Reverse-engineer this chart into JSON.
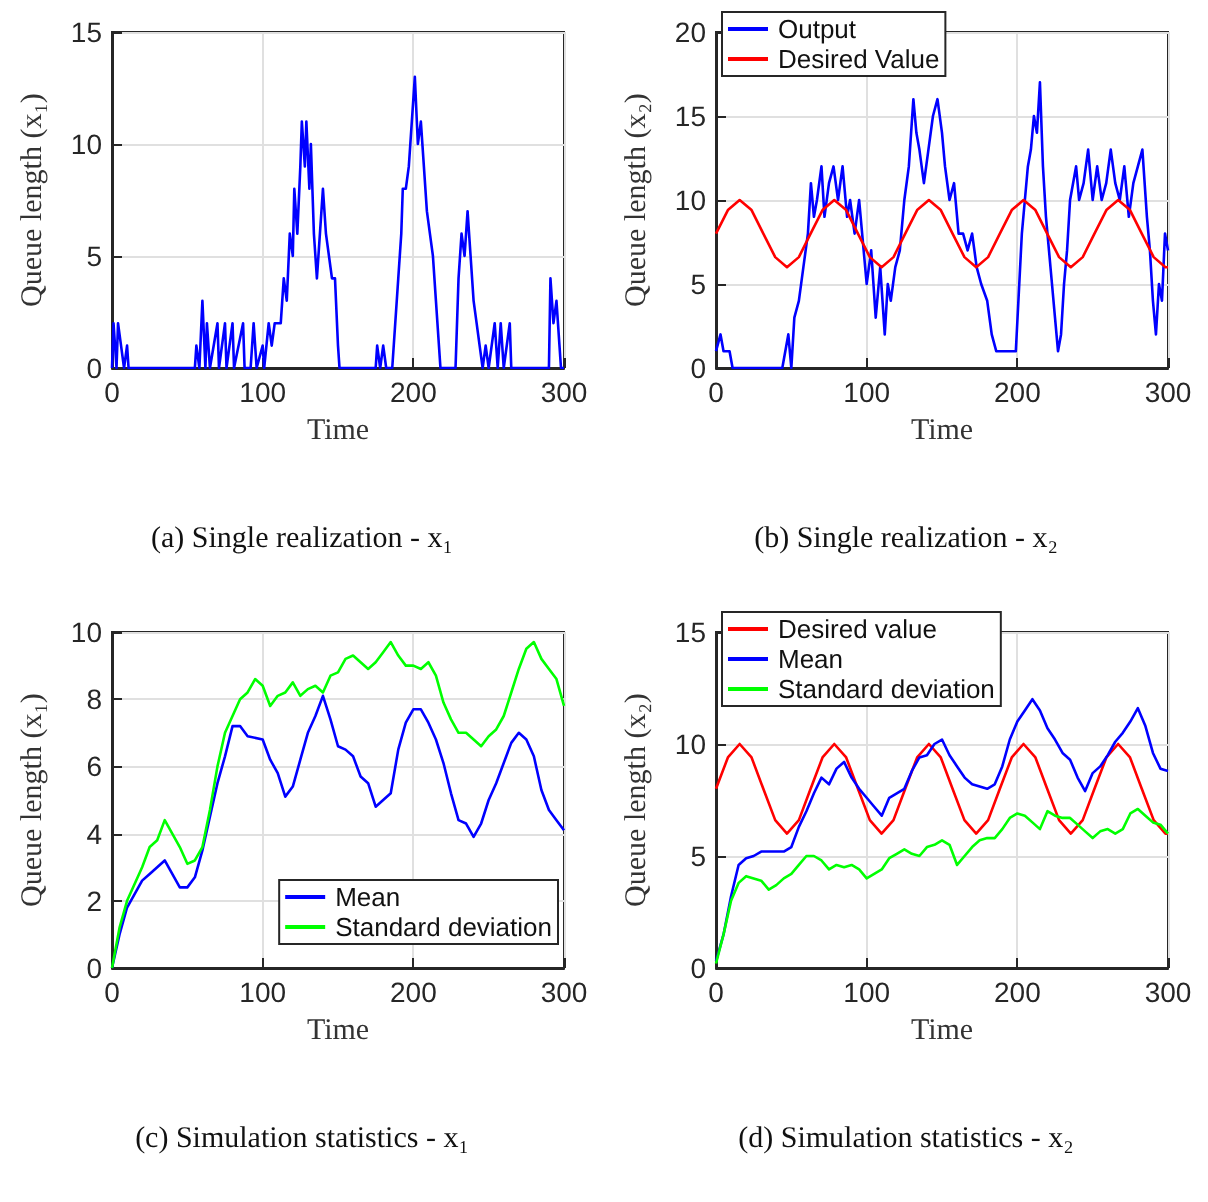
{
  "chart_data": [
    {
      "type": "line",
      "xlabel": "Time",
      "ylabel": "Queue length (x₁)",
      "annotations": [
        "(a) Single realization - x₁"
      ],
      "xlim": [
        0,
        300
      ],
      "xticks": [
        0,
        100,
        200,
        300
      ],
      "ylim": [
        0,
        15
      ],
      "yticks": [
        0,
        5,
        10,
        15
      ],
      "grid": true,
      "legend": false,
      "series": [
        {
          "color": "#0000ff",
          "x": [
            0,
            1,
            3,
            4,
            6,
            8,
            10,
            11,
            55,
            56,
            58,
            60,
            62,
            63,
            65,
            70,
            71,
            75,
            76,
            80,
            81,
            87,
            88,
            92,
            94,
            96,
            100,
            101,
            104,
            106,
            108,
            112,
            114,
            116,
            118,
            120,
            121,
            123,
            125,
            126,
            128,
            129,
            131,
            132,
            134,
            136,
            138,
            140,
            142,
            144,
            146,
            148,
            150,
            151,
            175,
            176,
            178,
            180,
            182,
            186,
            188,
            190,
            192,
            193,
            195,
            197,
            199,
            201,
            203,
            205,
            207,
            209,
            211,
            213,
            215,
            217,
            218,
            228,
            230,
            232,
            234,
            236,
            238,
            240,
            242,
            244,
            246,
            248,
            250,
            254,
            256,
            258,
            260,
            264,
            265,
            290,
            291,
            293,
            295,
            297,
            298,
            300
          ],
          "values": [
            0,
            2,
            0,
            2,
            1,
            0,
            1,
            0,
            0,
            1,
            0,
            3,
            0,
            2,
            0,
            2,
            0,
            2,
            0,
            2,
            0,
            2,
            0,
            0,
            2,
            0,
            1,
            0,
            2,
            1,
            2,
            2,
            4,
            3,
            6,
            5,
            8,
            6,
            9,
            11,
            9,
            11,
            8,
            10,
            6,
            4,
            6,
            8,
            6,
            5,
            4,
            4,
            1,
            0,
            0,
            1,
            0,
            1,
            0,
            0,
            2,
            4,
            6,
            8,
            8,
            9,
            11,
            13,
            10,
            11,
            9,
            7,
            6,
            5,
            3,
            1,
            0,
            0,
            4,
            6,
            5,
            7,
            5,
            3,
            2,
            1,
            0,
            1,
            0,
            2,
            0,
            2,
            0,
            2,
            0,
            0,
            4,
            2,
            3,
            1,
            0,
            0
          ]
        }
      ]
    },
    {
      "type": "line",
      "xlabel": "Time",
      "ylabel": "Queue length (x₂)",
      "annotations": [
        "(b) Single realization - x₂"
      ],
      "xlim": [
        0,
        300
      ],
      "xticks": [
        0,
        100,
        200,
        300
      ],
      "ylim": [
        0,
        20
      ],
      "yticks": [
        0,
        5,
        10,
        15,
        20
      ],
      "grid": true,
      "legend": "top left",
      "series": [
        {
          "name": "Output",
          "color": "#0000ff",
          "x": [
            0,
            3,
            5,
            9,
            11,
            13,
            44,
            46,
            48,
            50,
            52,
            55,
            58,
            61,
            63,
            65,
            67,
            70,
            72,
            75,
            78,
            81,
            84,
            87,
            89,
            92,
            95,
            98,
            100,
            103,
            106,
            109,
            112,
            114,
            116,
            119,
            122,
            125,
            128,
            131,
            133,
            135,
            138,
            141,
            144,
            147,
            150,
            152,
            155,
            158,
            161,
            164,
            167,
            170,
            173,
            176,
            180,
            183,
            186,
            188,
            191,
            195,
            199,
            203,
            205,
            207,
            209,
            211,
            213,
            215,
            217,
            219,
            221,
            223,
            225,
            227,
            229,
            231,
            233,
            235,
            237,
            239,
            241,
            244,
            247,
            250,
            253,
            256,
            259,
            262,
            265,
            268,
            271,
            274,
            277,
            280,
            283,
            286,
            288,
            290,
            292,
            294,
            296,
            298,
            300
          ],
          "values": [
            1,
            2,
            1,
            1,
            0,
            0,
            0,
            1,
            2,
            0,
            3,
            4,
            6,
            8,
            11,
            9,
            10,
            12,
            9,
            11,
            12,
            10,
            12,
            9,
            10,
            8,
            10,
            7,
            5,
            7,
            3,
            6,
            2,
            5,
            4,
            6,
            7,
            10,
            12,
            16,
            14,
            13,
            11,
            13,
            15,
            16,
            14,
            12,
            10,
            11,
            8,
            8,
            7,
            8,
            6,
            5,
            4,
            2,
            1,
            1,
            1,
            1,
            1,
            8,
            10,
            12,
            13,
            15,
            14,
            17,
            12,
            9,
            7,
            5,
            3,
            1,
            2,
            5,
            7,
            10,
            11,
            12,
            10,
            11,
            13,
            10,
            12,
            10,
            11,
            13,
            11,
            10,
            12,
            9,
            11,
            12,
            13,
            9,
            7,
            4,
            2,
            5,
            4,
            8,
            7
          ]
        },
        {
          "name": "Desired Value",
          "color": "#ff0000",
          "x": [
            0,
            7.9,
            15.7,
            23.6,
            31.4,
            39.3,
            47.1,
            55,
            62.8,
            70.7,
            78.5,
            86.4,
            94.2,
            102.1,
            109.9,
            117.8,
            125.6,
            133.5,
            141.3,
            149.2,
            157,
            164.9,
            172.7,
            180.6,
            188.4,
            196.3,
            204.1,
            212,
            219.8,
            227.7,
            235.5,
            243.4,
            251.2,
            259.1,
            266.9,
            274.8,
            282.6,
            290.5,
            298.3,
            300
          ],
          "values": [
            8,
            9.4,
            10,
            9.4,
            8,
            6.6,
            6,
            6.6,
            8,
            9.4,
            10,
            9.4,
            8,
            6.6,
            6,
            6.6,
            8,
            9.4,
            10,
            9.4,
            8,
            6.6,
            6,
            6.6,
            8,
            9.4,
            10,
            9.4,
            8,
            6.6,
            6,
            6.6,
            8,
            9.4,
            10,
            9.4,
            8,
            6.6,
            6,
            6
          ]
        }
      ]
    },
    {
      "type": "line",
      "xlabel": "Time",
      "ylabel": "Queue length (x₁)",
      "annotations": [
        "(c) Simulation statistics - x₁"
      ],
      "xlim": [
        0,
        300
      ],
      "xticks": [
        0,
        100,
        200,
        300
      ],
      "ylim": [
        0,
        10
      ],
      "yticks": [
        0,
        2,
        4,
        6,
        8,
        10
      ],
      "grid": true,
      "legend": "bottom right",
      "series": [
        {
          "name": "Mean",
          "color": "#0000ff",
          "x": [
            0,
            5,
            10,
            20,
            25,
            30,
            35,
            40,
            45,
            50,
            55,
            60,
            65,
            70,
            75,
            80,
            85,
            90,
            100,
            105,
            110,
            115,
            120,
            125,
            130,
            135,
            140,
            145,
            150,
            155,
            160,
            165,
            170,
            175,
            180,
            185,
            190,
            195,
            200,
            205,
            210,
            215,
            220,
            225,
            230,
            235,
            240,
            245,
            250,
            255,
            260,
            265,
            270,
            275,
            280,
            285,
            290,
            295,
            300
          ],
          "values": [
            0,
            1,
            1.8,
            2.6,
            2.8,
            3,
            3.2,
            2.8,
            2.4,
            2.4,
            2.7,
            3.5,
            4.5,
            5.5,
            6.3,
            7.2,
            7.2,
            6.9,
            6.8,
            6.2,
            5.8,
            5.1,
            5.4,
            6.2,
            7,
            7.5,
            8.1,
            7.4,
            6.6,
            6.5,
            6.3,
            5.7,
            5.5,
            4.8,
            5,
            5.2,
            6.5,
            7.3,
            7.7,
            7.7,
            7.3,
            6.8,
            6.1,
            5.2,
            4.4,
            4.3,
            3.9,
            4.3,
            5,
            5.5,
            6.1,
            6.7,
            7,
            6.8,
            6.3,
            5.3,
            4.7,
            4.4,
            4.1
          ]
        },
        {
          "name": "Standard deviation",
          "color": "#00ff00",
          "x": [
            0,
            5,
            10,
            20,
            25,
            30,
            35,
            40,
            45,
            50,
            55,
            60,
            65,
            70,
            75,
            80,
            85,
            90,
            95,
            100,
            105,
            110,
            115,
            120,
            125,
            130,
            135,
            140,
            145,
            150,
            155,
            160,
            165,
            170,
            175,
            180,
            185,
            190,
            195,
            200,
            205,
            210,
            215,
            220,
            225,
            230,
            235,
            240,
            245,
            250,
            255,
            260,
            265,
            270,
            275,
            280,
            285,
            290,
            295,
            300
          ],
          "values": [
            0,
            1.2,
            2,
            3,
            3.6,
            3.8,
            4.4,
            4,
            3.6,
            3.1,
            3.2,
            3.6,
            4.7,
            6,
            7,
            7.5,
            8,
            8.2,
            8.6,
            8.4,
            7.8,
            8.1,
            8.2,
            8.5,
            8.1,
            8.3,
            8.4,
            8.2,
            8.7,
            8.8,
            9.2,
            9.3,
            9.1,
            8.9,
            9.1,
            9.4,
            9.7,
            9.3,
            9,
            9,
            8.9,
            9.1,
            8.7,
            7.9,
            7.4,
            7,
            7,
            6.8,
            6.6,
            6.9,
            7.1,
            7.5,
            8.2,
            8.9,
            9.5,
            9.7,
            9.2,
            8.9,
            8.6,
            7.8
          ]
        }
      ]
    },
    {
      "type": "line",
      "xlabel": "Time",
      "ylabel": "Queue length (x₂)",
      "annotations": [
        "(d) Simulation statistics - x₂"
      ],
      "xlim": [
        0,
        300
      ],
      "xticks": [
        0,
        100,
        200,
        300
      ],
      "ylim": [
        0,
        15
      ],
      "yticks": [
        0,
        5,
        10,
        15
      ],
      "grid": true,
      "legend": "top left",
      "series": [
        {
          "name": "Desired value",
          "color": "#ff0000",
          "x": [
            0,
            7.9,
            15.7,
            23.6,
            31.4,
            39.3,
            47.1,
            55,
            62.8,
            70.7,
            78.5,
            86.4,
            94.2,
            102.1,
            109.9,
            117.8,
            125.6,
            133.5,
            141.3,
            149.2,
            157,
            164.9,
            172.7,
            180.6,
            188.4,
            196.3,
            204.1,
            212,
            219.8,
            227.7,
            235.5,
            243.4,
            251.2,
            259.1,
            266.9,
            274.8,
            282.6,
            290.5,
            298.3,
            300
          ],
          "values": [
            8,
            9.4,
            10,
            9.4,
            8,
            6.6,
            6,
            6.6,
            8,
            9.4,
            10,
            9.4,
            8,
            6.6,
            6,
            6.6,
            8,
            9.4,
            10,
            9.4,
            8,
            6.6,
            6,
            6.6,
            8,
            9.4,
            10,
            9.4,
            8,
            6.6,
            6,
            6.6,
            8,
            9.4,
            10,
            9.4,
            8,
            6.6,
            6,
            6
          ]
        },
        {
          "name": "Mean",
          "color": "#0000ff",
          "x": [
            0,
            5,
            10,
            15,
            20,
            25,
            30,
            40,
            45,
            50,
            55,
            60,
            65,
            70,
            75,
            80,
            85,
            90,
            95,
            100,
            105,
            110,
            115,
            120,
            125,
            130,
            135,
            140,
            145,
            150,
            155,
            160,
            165,
            170,
            175,
            180,
            185,
            190,
            195,
            200,
            205,
            210,
            215,
            220,
            225,
            230,
            235,
            240,
            245,
            250,
            255,
            260,
            265,
            270,
            275,
            280,
            285,
            290,
            295,
            300
          ],
          "values": [
            0.3,
            1.5,
            3.2,
            4.6,
            4.9,
            5,
            5.2,
            5.2,
            5.2,
            5.4,
            6.3,
            7,
            7.8,
            8.5,
            8.2,
            8.9,
            9.2,
            8.5,
            8,
            7.6,
            7.2,
            6.8,
            7.6,
            7.8,
            8,
            8.8,
            9.4,
            9.5,
            10,
            10.2,
            9.5,
            9,
            8.5,
            8.2,
            8.1,
            8,
            8.2,
            9,
            10.2,
            11,
            11.5,
            12,
            11.5,
            10.7,
            10.2,
            9.6,
            9.3,
            8.5,
            7.9,
            8.7,
            9,
            9.5,
            10.1,
            10.5,
            11,
            11.6,
            10.8,
            9.6,
            8.9,
            8.8
          ]
        },
        {
          "name": "Standard deviation",
          "color": "#00ff00",
          "x": [
            0,
            5,
            10,
            15,
            20,
            25,
            30,
            35,
            40,
            45,
            50,
            55,
            60,
            65,
            70,
            75,
            80,
            85,
            90,
            95,
            100,
            105,
            110,
            115,
            120,
            125,
            130,
            135,
            140,
            145,
            150,
            155,
            160,
            165,
            170,
            175,
            180,
            185,
            190,
            195,
            200,
            205,
            210,
            215,
            220,
            225,
            230,
            235,
            240,
            245,
            250,
            255,
            260,
            265,
            270,
            275,
            280,
            285,
            290,
            295,
            300
          ],
          "values": [
            0.2,
            1.5,
            3,
            3.8,
            4.1,
            4,
            3.9,
            3.5,
            3.7,
            4,
            4.2,
            4.6,
            5,
            5,
            4.8,
            4.4,
            4.6,
            4.5,
            4.6,
            4.4,
            4,
            4.2,
            4.4,
            4.9,
            5.1,
            5.3,
            5.1,
            5,
            5.4,
            5.5,
            5.7,
            5.5,
            4.6,
            5,
            5.4,
            5.7,
            5.8,
            5.8,
            6.2,
            6.7,
            6.9,
            6.8,
            6.5,
            6.2,
            7,
            6.8,
            6.7,
            6.7,
            6.4,
            6.1,
            5.8,
            6.1,
            6.2,
            6,
            6.2,
            6.9,
            7.1,
            6.8,
            6.5,
            6.4,
            6
          ]
        }
      ]
    }
  ]
}
